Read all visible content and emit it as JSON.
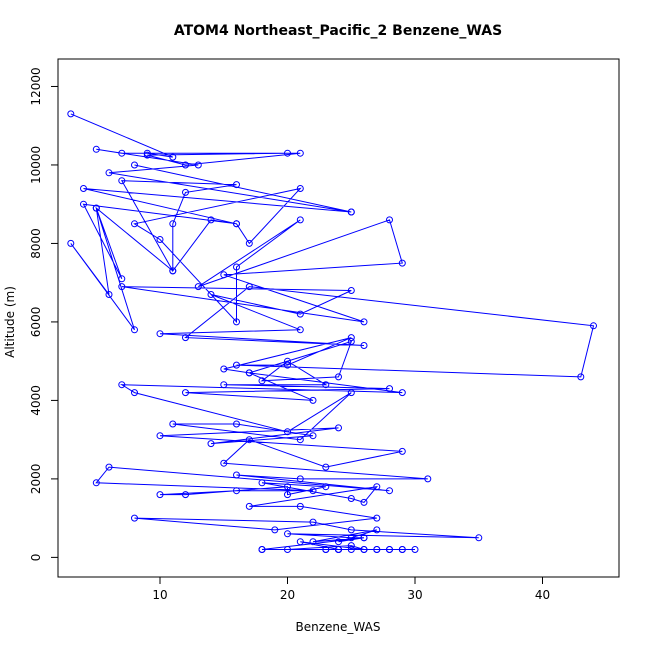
{
  "chart_data": {
    "type": "line",
    "title": "ATOM4 Northeast_Pacific_2 Benzene_WAS",
    "xlabel": "Benzene_WAS",
    "ylabel": "Altitude (m)",
    "xlim": [
      2,
      46
    ],
    "ylim": [
      -500,
      12700
    ],
    "xticks": [
      10,
      20,
      30,
      40
    ],
    "yticks": [
      0,
      2000,
      4000,
      6000,
      8000,
      10000,
      12000
    ],
    "grid": false,
    "marker": "open-circle",
    "color": "#0000ff",
    "series": [
      {
        "points": [
          [
            3,
            11300
          ],
          [
            11,
            10200
          ],
          [
            9,
            10300
          ],
          [
            20,
            10300
          ],
          [
            9,
            10250
          ],
          [
            12,
            10000
          ],
          [
            21,
            10300
          ],
          [
            7,
            10300
          ],
          [
            5,
            10400
          ],
          [
            13,
            10000
          ],
          [
            6,
            9800
          ],
          [
            25,
            8800
          ],
          [
            8,
            10000
          ],
          [
            25,
            8800
          ],
          [
            4,
            9400
          ],
          [
            16,
            8500
          ],
          [
            4,
            9000
          ],
          [
            7,
            7100
          ],
          [
            5,
            8900
          ],
          [
            6,
            6700
          ],
          [
            3,
            8000
          ],
          [
            8,
            5800
          ],
          [
            5,
            8900
          ],
          [
            11,
            7300
          ],
          [
            7,
            9600
          ],
          [
            16,
            9500
          ],
          [
            12,
            9300
          ],
          [
            11,
            8500
          ],
          [
            11,
            7300
          ],
          [
            14,
            8600
          ],
          [
            16,
            8500
          ],
          [
            17,
            8000
          ],
          [
            21,
            9400
          ],
          [
            8,
            8500
          ],
          [
            10,
            8100
          ],
          [
            16,
            6000
          ],
          [
            16,
            7400
          ],
          [
            21,
            8600
          ],
          [
            13,
            6900
          ],
          [
            28,
            8600
          ],
          [
            29,
            7500
          ],
          [
            15,
            7200
          ],
          [
            26,
            6000
          ],
          [
            7,
            6900
          ],
          [
            25,
            6800
          ],
          [
            21,
            6200
          ],
          [
            14,
            6700
          ],
          [
            21,
            5800
          ],
          [
            10,
            5700
          ],
          [
            26,
            5400
          ],
          [
            12,
            5600
          ],
          [
            17,
            6900
          ],
          [
            44,
            5900
          ],
          [
            43,
            4600
          ],
          [
            16,
            4900
          ],
          [
            20,
            4900
          ],
          [
            25,
            5600
          ],
          [
            15,
            4800
          ],
          [
            17,
            4700
          ],
          [
            25,
            5500
          ],
          [
            24,
            4600
          ],
          [
            18,
            4500
          ],
          [
            20,
            5000
          ],
          [
            23,
            4400
          ],
          [
            15,
            4400
          ],
          [
            28,
            4300
          ],
          [
            12,
            4200
          ],
          [
            22,
            4000
          ],
          [
            17,
            4700
          ],
          [
            29,
            4200
          ],
          [
            7,
            4400
          ],
          [
            8,
            4200
          ],
          [
            20,
            3200
          ],
          [
            25,
            4200
          ],
          [
            21,
            3000
          ],
          [
            11,
            3400
          ],
          [
            16,
            3400
          ],
          [
            22,
            3100
          ],
          [
            14,
            2900
          ],
          [
            24,
            3300
          ],
          [
            10,
            3100
          ],
          [
            29,
            2700
          ],
          [
            23,
            2300
          ],
          [
            17,
            3000
          ],
          [
            15,
            2400
          ],
          [
            31,
            2000
          ],
          [
            21,
            2000
          ],
          [
            16,
            2100
          ],
          [
            28,
            1700
          ],
          [
            6,
            2300
          ],
          [
            5,
            1900
          ],
          [
            22,
            1700
          ],
          [
            16,
            1700
          ],
          [
            10,
            1600
          ],
          [
            12,
            1600
          ],
          [
            20,
            1800
          ],
          [
            20,
            1600
          ],
          [
            23,
            1800
          ],
          [
            18,
            1900
          ],
          [
            25,
            1500
          ],
          [
            26,
            1400
          ],
          [
            27,
            1800
          ],
          [
            17,
            1300
          ],
          [
            21,
            1300
          ],
          [
            27,
            1000
          ],
          [
            19,
            700
          ],
          [
            8,
            1000
          ],
          [
            22,
            900
          ],
          [
            25,
            700
          ],
          [
            35,
            500
          ],
          [
            20,
            600
          ],
          [
            25,
            500
          ],
          [
            26,
            500
          ],
          [
            22,
            400
          ],
          [
            27,
            700
          ],
          [
            24,
            400
          ],
          [
            26,
            500
          ],
          [
            18,
            200
          ],
          [
            23,
            200
          ],
          [
            28,
            200
          ],
          [
            27,
            200
          ],
          [
            24,
            200
          ],
          [
            29,
            200
          ],
          [
            30,
            200
          ],
          [
            20,
            200
          ],
          [
            25,
            300
          ],
          [
            26,
            200
          ],
          [
            21,
            400
          ],
          [
            24,
            200
          ],
          [
            25,
            200
          ],
          [
            27,
            200
          ],
          [
            26,
            200
          ],
          [
            29,
            200
          ],
          [
            28,
            200
          ],
          [
            24,
            200
          ],
          [
            23,
            200
          ],
          [
            18,
            200
          ]
        ]
      }
    ]
  }
}
